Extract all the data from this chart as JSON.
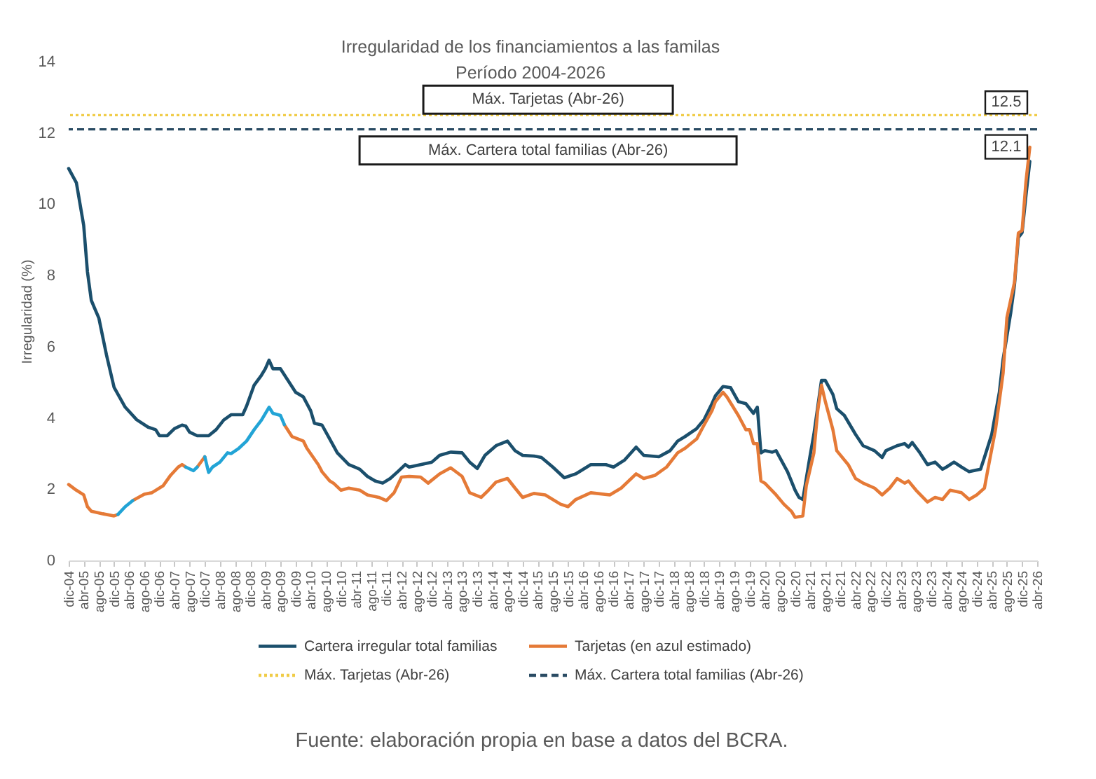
{
  "chart_data": {
    "type": "line",
    "title": "Irregularidad de los financiamientos a las familas",
    "subtitle": "Período 2004-2026",
    "ylabel": "Irregularidad (%)",
    "xlim": [
      "2004-12",
      "2026-04"
    ],
    "xticks": [
      {
        "value": "2004-12",
        "label": "dic-04"
      },
      {
        "value": "2005-04",
        "label": "abr-05"
      },
      {
        "value": "2005-08",
        "label": "ago-05"
      },
      {
        "value": "2005-12",
        "label": "dic-05"
      },
      {
        "value": "2006-04",
        "label": "abr-06"
      },
      {
        "value": "2006-08",
        "label": "ago-06"
      },
      {
        "value": "2006-12",
        "label": "dic-06"
      },
      {
        "value": "2007-04",
        "label": "abr-07"
      },
      {
        "value": "2007-08",
        "label": "ago-07"
      },
      {
        "value": "2007-12",
        "label": "dic-07"
      },
      {
        "value": "2008-04",
        "label": "abr-08"
      },
      {
        "value": "2008-08",
        "label": "ago-08"
      },
      {
        "value": "2008-12",
        "label": "dic-08"
      },
      {
        "value": "2009-04",
        "label": "abr-09"
      },
      {
        "value": "2009-08",
        "label": "ago-09"
      },
      {
        "value": "2009-12",
        "label": "dic-09"
      },
      {
        "value": "2010-04",
        "label": "abr-10"
      },
      {
        "value": "2010-08",
        "label": "ago-10"
      },
      {
        "value": "2010-12",
        "label": "dic-10"
      },
      {
        "value": "2011-04",
        "label": "abr-11"
      },
      {
        "value": "2011-08",
        "label": "ago-11"
      },
      {
        "value": "2011-12",
        "label": "dic-11"
      },
      {
        "value": "2012-04",
        "label": "abr-12"
      },
      {
        "value": "2012-08",
        "label": "ago-12"
      },
      {
        "value": "2012-12",
        "label": "dic-12"
      },
      {
        "value": "2013-04",
        "label": "abr-13"
      },
      {
        "value": "2013-08",
        "label": "ago-13"
      },
      {
        "value": "2013-12",
        "label": "dic-13"
      },
      {
        "value": "2014-04",
        "label": "abr-14"
      },
      {
        "value": "2014-08",
        "label": "ago-14"
      },
      {
        "value": "2014-12",
        "label": "dic-14"
      },
      {
        "value": "2015-04",
        "label": "abr-15"
      },
      {
        "value": "2015-08",
        "label": "ago-15"
      },
      {
        "value": "2015-12",
        "label": "dic-15"
      },
      {
        "value": "2016-04",
        "label": "abr-16"
      },
      {
        "value": "2016-08",
        "label": "ago-16"
      },
      {
        "value": "2016-12",
        "label": "dic-16"
      },
      {
        "value": "2017-04",
        "label": "abr-17"
      },
      {
        "value": "2017-08",
        "label": "ago-17"
      },
      {
        "value": "2017-12",
        "label": "dic-17"
      },
      {
        "value": "2018-04",
        "label": "abr-18"
      },
      {
        "value": "2018-08",
        "label": "ago-18"
      },
      {
        "value": "2018-12",
        "label": "dic-18"
      },
      {
        "value": "2019-04",
        "label": "abr-19"
      },
      {
        "value": "2019-08",
        "label": "ago-19"
      },
      {
        "value": "2019-12",
        "label": "dic-19"
      },
      {
        "value": "2020-04",
        "label": "abr-20"
      },
      {
        "value": "2020-08",
        "label": "ago-20"
      },
      {
        "value": "2020-12",
        "label": "dic-20"
      },
      {
        "value": "2021-04",
        "label": "abr-21"
      },
      {
        "value": "2021-08",
        "label": "ago-21"
      },
      {
        "value": "2021-12",
        "label": "dic-21"
      },
      {
        "value": "2022-04",
        "label": "abr-22"
      },
      {
        "value": "2022-08",
        "label": "ago-22"
      },
      {
        "value": "2022-12",
        "label": "dic-22"
      },
      {
        "value": "2023-04",
        "label": "abr-23"
      },
      {
        "value": "2023-08",
        "label": "ago-23"
      },
      {
        "value": "2023-12",
        "label": "dic-23"
      },
      {
        "value": "2024-04",
        "label": "abr-24"
      },
      {
        "value": "2024-08",
        "label": "ago-24"
      },
      {
        "value": "2024-12",
        "label": "dic-24"
      },
      {
        "value": "2025-04",
        "label": "abr-25"
      },
      {
        "value": "2025-08",
        "label": "ago-25"
      },
      {
        "value": "2025-12",
        "label": "dic-25"
      },
      {
        "value": "2026-04",
        "label": "abr-26"
      }
    ],
    "ylim": [
      0,
      14
    ],
    "yticks": [
      0,
      2,
      4,
      6,
      8,
      10,
      12,
      14
    ],
    "series": [
      {
        "name": "Cartera irregular total familias",
        "color": "#1b4f6c",
        "x": [
          "2004-12",
          "2005-02",
          "2005-04",
          "2005-05",
          "2005-06",
          "2005-07",
          "2005-08",
          "2005-10",
          "2005-12",
          "2006-03",
          "2006-06",
          "2006-09",
          "2006-11",
          "2006-12",
          "2007-02",
          "2007-04",
          "2007-06",
          "2007-07",
          "2007-08",
          "2007-10",
          "2008-01",
          "2008-03",
          "2008-05",
          "2008-07",
          "2008-10",
          "2008-11",
          "2009-01",
          "2009-03",
          "2009-04",
          "2009-05",
          "2009-06",
          "2009-08",
          "2009-10",
          "2009-12",
          "2010-02",
          "2010-04",
          "2010-05",
          "2010-07",
          "2010-09",
          "2010-11",
          "2011-02",
          "2011-05",
          "2011-07",
          "2011-09",
          "2011-11",
          "2012-01",
          "2012-03",
          "2012-05",
          "2012-06",
          "2012-09",
          "2012-12",
          "2013-02",
          "2013-05",
          "2013-08",
          "2013-10",
          "2013-12",
          "2014-02",
          "2014-05",
          "2014-08",
          "2014-10",
          "2014-12",
          "2015-03",
          "2015-05",
          "2015-08",
          "2015-11",
          "2016-02",
          "2016-06",
          "2016-10",
          "2016-12",
          "2017-03",
          "2017-06",
          "2017-08",
          "2017-12",
          "2018-03",
          "2018-05",
          "2018-07",
          "2018-10",
          "2018-12",
          "2019-02",
          "2019-03",
          "2019-05",
          "2019-07",
          "2019-09",
          "2019-11",
          "2020-01",
          "2020-02",
          "2020-03",
          "2020-04",
          "2020-06",
          "2020-07",
          "2020-10",
          "2020-12",
          "2021-01",
          "2021-02",
          "2021-04",
          "2021-05",
          "2021-07",
          "2021-08",
          "2021-10",
          "2021-11",
          "2022-01",
          "2022-04",
          "2022-06",
          "2022-09",
          "2022-11",
          "2022-12",
          "2023-03",
          "2023-05",
          "2023-06",
          "2023-07",
          "2023-09",
          "2023-11",
          "2024-01",
          "2024-03",
          "2024-04",
          "2024-06",
          "2024-08",
          "2024-10",
          "2025-01",
          "2025-02",
          "2025-04",
          "2025-06",
          "2025-07",
          "2025-09",
          "2025-10",
          "2025-11",
          "2025-12",
          "2026-01",
          "2026-02"
        ],
        "values": [
          11.0,
          10.6,
          9.4,
          8.1,
          7.3,
          7.05,
          6.8,
          5.77,
          4.86,
          4.3,
          3.95,
          3.74,
          3.67,
          3.5,
          3.5,
          3.7,
          3.8,
          3.77,
          3.6,
          3.5,
          3.5,
          3.67,
          3.94,
          4.09,
          4.09,
          4.33,
          4.92,
          5.2,
          5.38,
          5.62,
          5.38,
          5.38,
          5.05,
          4.72,
          4.59,
          4.2,
          3.85,
          3.8,
          3.41,
          3.02,
          2.69,
          2.56,
          2.36,
          2.23,
          2.17,
          2.3,
          2.49,
          2.69,
          2.62,
          2.69,
          2.76,
          2.95,
          3.04,
          3.02,
          2.76,
          2.58,
          2.95,
          3.22,
          3.35,
          3.08,
          2.95,
          2.93,
          2.89,
          2.62,
          2.32,
          2.43,
          2.69,
          2.69,
          2.62,
          2.82,
          3.18,
          2.95,
          2.91,
          3.08,
          3.35,
          3.48,
          3.7,
          3.96,
          4.4,
          4.62,
          4.88,
          4.85,
          4.46,
          4.4,
          4.13,
          4.3,
          3.02,
          3.08,
          3.04,
          3.08,
          2.49,
          1.97,
          1.77,
          1.71,
          2.95,
          3.54,
          5.05,
          5.05,
          4.66,
          4.26,
          4.07,
          3.54,
          3.22,
          3.08,
          2.89,
          3.08,
          3.22,
          3.28,
          3.18,
          3.31,
          3.02,
          2.69,
          2.76,
          2.56,
          2.62,
          2.76,
          2.62,
          2.49,
          2.56,
          2.89,
          3.54,
          4.72,
          5.64,
          6.96,
          7.74,
          9.06,
          9.2,
          10.24,
          11.2
        ]
      },
      {
        "name": "Tarjetas (en azul estimado)",
        "color": "#e57a37",
        "x": [
          "2004-12",
          "2005-02",
          "2005-04",
          "2005-05",
          "2005-06",
          "2005-09",
          "2005-12",
          "2006-01",
          "2006-03",
          "2006-05",
          "2006-08",
          "2006-10",
          "2007-01",
          "2007-03",
          "2007-05",
          "2007-06",
          "2007-07",
          "2007-09",
          "2007-10",
          "2007-12",
          "2008-09",
          "2009-09",
          "2009-11",
          "2010-02",
          "2010-03",
          "2010-06",
          "2010-07",
          "2010-09",
          "2010-10",
          "2010-12",
          "2011-02",
          "2011-05",
          "2011-07",
          "2011-10",
          "2011-12",
          "2012-02",
          "2012-04",
          "2012-06",
          "2012-09",
          "2012-11",
          "2013-02",
          "2013-05",
          "2013-08",
          "2013-10",
          "2014-01",
          "2014-03",
          "2014-05",
          "2014-08",
          "2014-10",
          "2014-12",
          "2015-03",
          "2015-06",
          "2015-10",
          "2015-12",
          "2016-02",
          "2016-06",
          "2016-11",
          "2017-02",
          "2017-06",
          "2017-08",
          "2017-11",
          "2018-02",
          "2018-05",
          "2018-07",
          "2018-10",
          "2018-12",
          "2019-02",
          "2019-03",
          "2019-05",
          "2019-06",
          "2019-09",
          "2019-11",
          "2019-12",
          "2020-01",
          "2020-02",
          "2020-03",
          "2020-04",
          "2020-07",
          "2020-09",
          "2020-11",
          "2020-12",
          "2021-02",
          "2021-03",
          "2021-05",
          "2021-06",
          "2021-07",
          "2021-08",
          "2021-10",
          "2021-11",
          "2022-02",
          "2022-04",
          "2022-06",
          "2022-09",
          "2022-11",
          "2023-01",
          "2023-03",
          "2023-05",
          "2023-06",
          "2023-08",
          "2023-11",
          "2024-01",
          "2024-03",
          "2024-05",
          "2024-08",
          "2024-10",
          "2024-12",
          "2025-02",
          "2025-03",
          "2025-05",
          "2025-07",
          "2025-08",
          "2025-10",
          "2025-11",
          "2025-12",
          "2026-01",
          "2026-02"
        ],
        "values": [
          2.13,
          1.97,
          1.84,
          1.51,
          1.38,
          1.31,
          1.25,
          1.29,
          null,
          1.68,
          1.86,
          1.9,
          2.1,
          2.39,
          2.62,
          2.69,
          2.62,
          null,
          2.62,
          2.91,
          null,
          3.81,
          3.48,
          3.35,
          3.15,
          2.69,
          2.49,
          2.23,
          2.17,
          1.97,
          2.03,
          1.97,
          1.84,
          1.77,
          1.68,
          1.9,
          2.34,
          2.36,
          2.34,
          2.17,
          2.43,
          2.6,
          2.36,
          1.9,
          1.77,
          1.97,
          2.2,
          2.3,
          2.03,
          1.77,
          1.88,
          1.84,
          1.58,
          1.51,
          1.71,
          1.9,
          1.84,
          2.03,
          2.43,
          2.3,
          2.39,
          2.62,
          3.02,
          3.15,
          3.41,
          3.81,
          4.2,
          4.46,
          4.72,
          4.59,
          4.07,
          3.67,
          3.67,
          3.28,
          3.28,
          2.23,
          2.17,
          1.84,
          1.58,
          1.38,
          1.21,
          1.25,
          2.1,
          3.02,
          4.2,
          4.92,
          4.46,
          3.67,
          3.08,
          2.69,
          2.3,
          2.17,
          2.03,
          1.84,
          2.03,
          2.3,
          2.17,
          2.23,
          1.97,
          1.64,
          1.77,
          1.71,
          1.97,
          1.9,
          1.71,
          1.84,
          2.03,
          2.56,
          3.67,
          5.25,
          6.82,
          7.81,
          9.19,
          9.26,
          10.63,
          11.6
        ]
      },
      {
        "color": "#21a3d5",
        "x": [
          "2006-01",
          "2006-03",
          "2006-05"
        ],
        "values": [
          1.29,
          1.51,
          1.68
        ]
      },
      {
        "color": "#23a5d7",
        "x": [
          "2007-07",
          "2007-09",
          "2007-10"
        ],
        "values": [
          2.62,
          2.52,
          2.62
        ]
      },
      {
        "color": "#22a4d6",
        "x": [
          "2007-12",
          "2008-01",
          "2008-02",
          "2008-04",
          "2008-06",
          "2008-07",
          "2008-09",
          "2008-11",
          "2009-01",
          "2009-03",
          "2009-05",
          "2009-06",
          "2009-08",
          "2009-09"
        ],
        "values": [
          2.91,
          2.47,
          2.62,
          2.76,
          3.02,
          3.0,
          3.15,
          3.35,
          3.67,
          3.94,
          4.3,
          4.13,
          4.07,
          3.81
        ]
      }
    ],
    "ref_lines": [
      {
        "axis": "y",
        "value": 12.5,
        "label": "Máx. Tarjetas (Abr-26)",
        "color": "#f0cc47",
        "line_style": "dotted"
      },
      {
        "axis": "y",
        "value": 12.1,
        "label": "Máx. Cartera total familias (Abr-26)",
        "color": "#2a4b63",
        "line_style": "dashed"
      }
    ],
    "annotations": [
      {
        "text": "12.5",
        "x": "2026-04",
        "y": 12.5
      },
      {
        "text": "12.1",
        "x": "2026-04",
        "y": 12.1
      },
      "Fuente: elaboración propia en base a datos del BCRA."
    ],
    "legend": "bottom"
  }
}
